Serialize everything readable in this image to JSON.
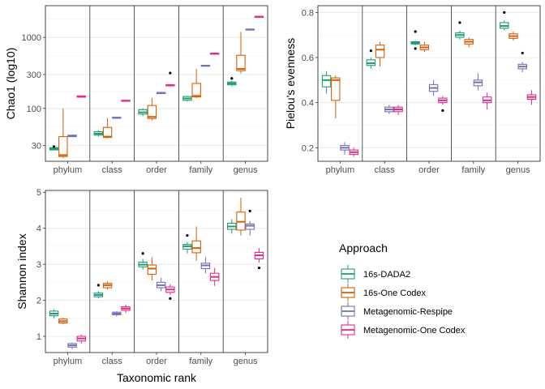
{
  "legend": {
    "title": "Approach",
    "items": [
      {
        "label": "16s-DADA2",
        "color": "#1b9e77"
      },
      {
        "label": "16s-One Codex",
        "color": "#d95f02"
      },
      {
        "label": "Metagenomic-Respipe",
        "color": "#7570b3"
      },
      {
        "label": "Metagenomic-One Codex",
        "color": "#e7298a"
      }
    ]
  },
  "chart_data": [
    {
      "type": "boxplot",
      "id": "chao1",
      "ylabel": "Chao1 (log10)",
      "xlabel": "",
      "yscale": "log10",
      "ylim": [
        18,
        2800
      ],
      "yticks": [
        {
          "v": 30,
          "label": "30"
        },
        {
          "v": 100,
          "label": "100"
        },
        {
          "v": 300,
          "label": "300"
        },
        {
          "v": 1000,
          "label": "1000"
        }
      ],
      "categories": [
        "phylum",
        "class",
        "order",
        "family",
        "genus"
      ],
      "grid": true,
      "series": [
        {
          "name": "16s-DADA2",
          "color": "#1b9e77",
          "boxes": [
            {
              "q1": 26,
              "med": 27,
              "q3": 28,
              "lo": 25.5,
              "hi": 28.5,
              "out": [
                29
              ]
            },
            {
              "q1": 42,
              "med": 44,
              "q3": 47,
              "lo": 40,
              "hi": 49,
              "out": []
            },
            {
              "q1": 83,
              "med": 88,
              "q3": 96,
              "lo": 78,
              "hi": 100,
              "out": []
            },
            {
              "q1": 130,
              "med": 138,
              "q3": 147,
              "lo": 125,
              "hi": 150,
              "out": []
            },
            {
              "q1": 215,
              "med": 225,
              "q3": 235,
              "lo": 205,
              "hi": 245,
              "out": [
                265
              ]
            }
          ]
        },
        {
          "name": "16s-One Codex",
          "color": "#d95f02",
          "boxes": [
            {
              "q1": 21,
              "med": 22,
              "q3": 40,
              "lo": 20,
              "hi": 100,
              "out": []
            },
            {
              "q1": 39,
              "med": 40,
              "q3": 54,
              "lo": 38,
              "hi": 73,
              "out": []
            },
            {
              "q1": 72,
              "med": 76,
              "q3": 110,
              "lo": 68,
              "hi": 140,
              "out": []
            },
            {
              "q1": 145,
              "med": 150,
              "q3": 225,
              "lo": 140,
              "hi": 360,
              "out": []
            },
            {
              "q1": 340,
              "med": 360,
              "q3": 560,
              "lo": 310,
              "hi": 1200,
              "out": []
            }
          ]
        },
        {
          "name": "Metagenomic-Respipe",
          "color": "#7570b3",
          "boxes": [
            {
              "q1": 40,
              "med": 41,
              "q3": 42,
              "lo": 39.5,
              "hi": 42.5,
              "out": []
            },
            {
              "q1": 73,
              "med": 74,
              "q3": 75,
              "lo": 72.5,
              "hi": 75.5,
              "out": []
            },
            {
              "q1": 162,
              "med": 165,
              "q3": 168,
              "lo": 160,
              "hi": 170,
              "out": []
            },
            {
              "q1": 395,
              "med": 400,
              "q3": 405,
              "lo": 390,
              "hi": 410,
              "out": []
            },
            {
              "q1": 1270,
              "med": 1290,
              "q3": 1310,
              "lo": 1250,
              "hi": 1330,
              "out": []
            }
          ]
        },
        {
          "name": "Metagenomic-One Codex",
          "color": "#e7298a",
          "boxes": [
            {
              "q1": 144,
              "med": 147,
              "q3": 150,
              "lo": 142,
              "hi": 152,
              "out": []
            },
            {
              "q1": 126,
              "med": 128,
              "q3": 130,
              "lo": 125,
              "hi": 131,
              "out": []
            },
            {
              "q1": 208,
              "med": 212,
              "q3": 216,
              "lo": 205,
              "hi": 220,
              "out": [
                315
              ]
            },
            {
              "q1": 580,
              "med": 590,
              "q3": 600,
              "lo": 570,
              "hi": 610,
              "out": []
            },
            {
              "q1": 1940,
              "med": 1960,
              "q3": 1980,
              "lo": 1920,
              "hi": 2000,
              "out": []
            }
          ]
        }
      ]
    },
    {
      "type": "boxplot",
      "id": "pielou",
      "ylabel": "Pielou's evenness",
      "xlabel": "",
      "yscale": "linear",
      "ylim": [
        0.14,
        0.83
      ],
      "yticks": [
        {
          "v": 0.2,
          "label": "0.2"
        },
        {
          "v": 0.4,
          "label": "0.4"
        },
        {
          "v": 0.6,
          "label": "0.6"
        },
        {
          "v": 0.8,
          "label": "0.8"
        }
      ],
      "categories": [
        "phylum",
        "class",
        "order",
        "family",
        "genus"
      ],
      "grid": true,
      "series": [
        {
          "name": "16s-DADA2",
          "color": "#1b9e77",
          "boxes": [
            {
              "q1": 0.47,
              "med": 0.5,
              "q3": 0.52,
              "lo": 0.44,
              "hi": 0.54,
              "out": []
            },
            {
              "q1": 0.565,
              "med": 0.575,
              "q3": 0.59,
              "lo": 0.55,
              "hi": 0.6,
              "out": [
                0.63
              ]
            },
            {
              "q1": 0.66,
              "med": 0.665,
              "q3": 0.67,
              "lo": 0.655,
              "hi": 0.675,
              "out": [
                0.715,
                0.64
              ]
            },
            {
              "q1": 0.69,
              "med": 0.7,
              "q3": 0.71,
              "lo": 0.68,
              "hi": 0.72,
              "out": [
                0.755
              ]
            },
            {
              "q1": 0.73,
              "med": 0.74,
              "q3": 0.755,
              "lo": 0.72,
              "hi": 0.765,
              "out": [
                0.8
              ]
            }
          ]
        },
        {
          "name": "16s-One Codex",
          "color": "#d95f02",
          "boxes": [
            {
              "q1": 0.41,
              "med": 0.5,
              "q3": 0.51,
              "lo": 0.33,
              "hi": 0.52,
              "out": []
            },
            {
              "q1": 0.6,
              "med": 0.635,
              "q3": 0.655,
              "lo": 0.56,
              "hi": 0.67,
              "out": []
            },
            {
              "q1": 0.635,
              "med": 0.645,
              "q3": 0.655,
              "lo": 0.625,
              "hi": 0.67,
              "out": []
            },
            {
              "q1": 0.66,
              "med": 0.67,
              "q3": 0.68,
              "lo": 0.645,
              "hi": 0.69,
              "out": []
            },
            {
              "q1": 0.685,
              "med": 0.695,
              "q3": 0.705,
              "lo": 0.675,
              "hi": 0.715,
              "out": []
            }
          ]
        },
        {
          "name": "Metagenomic-Respipe",
          "color": "#7570b3",
          "boxes": [
            {
              "q1": 0.19,
              "med": 0.2,
              "q3": 0.21,
              "lo": 0.17,
              "hi": 0.225,
              "out": []
            },
            {
              "q1": 0.36,
              "med": 0.37,
              "q3": 0.38,
              "lo": 0.35,
              "hi": 0.39,
              "out": []
            },
            {
              "q1": 0.45,
              "med": 0.465,
              "q3": 0.48,
              "lo": 0.43,
              "hi": 0.5,
              "out": []
            },
            {
              "q1": 0.475,
              "med": 0.49,
              "q3": 0.5,
              "lo": 0.455,
              "hi": 0.53,
              "out": []
            },
            {
              "q1": 0.55,
              "med": 0.56,
              "q3": 0.57,
              "lo": 0.535,
              "hi": 0.58,
              "out": [
                0.62
              ]
            }
          ]
        },
        {
          "name": "Metagenomic-One Codex",
          "color": "#e7298a",
          "boxes": [
            {
              "q1": 0.17,
              "med": 0.18,
              "q3": 0.19,
              "lo": 0.16,
              "hi": 0.2,
              "out": []
            },
            {
              "q1": 0.36,
              "med": 0.37,
              "q3": 0.38,
              "lo": 0.345,
              "hi": 0.39,
              "out": []
            },
            {
              "q1": 0.4,
              "med": 0.41,
              "q3": 0.42,
              "lo": 0.39,
              "hi": 0.43,
              "out": [
                0.365
              ]
            },
            {
              "q1": 0.4,
              "med": 0.41,
              "q3": 0.425,
              "lo": 0.37,
              "hi": 0.445,
              "out": []
            },
            {
              "q1": 0.415,
              "med": 0.425,
              "q3": 0.435,
              "lo": 0.39,
              "hi": 0.455,
              "out": []
            }
          ]
        }
      ]
    },
    {
      "type": "boxplot",
      "id": "shannon",
      "ylabel": "Shannon index",
      "xlabel": "Taxonomic rank",
      "yscale": "linear",
      "ylim": [
        0.55,
        5.05
      ],
      "yticks": [
        {
          "v": 1,
          "label": "1"
        },
        {
          "v": 2,
          "label": "2"
        },
        {
          "v": 3,
          "label": "3"
        },
        {
          "v": 4,
          "label": "4"
        },
        {
          "v": 5,
          "label": "5"
        }
      ],
      "categories": [
        "phylum",
        "class",
        "order",
        "family",
        "genus"
      ],
      "grid": true,
      "series": [
        {
          "name": "16s-DADA2",
          "color": "#1b9e77",
          "boxes": [
            {
              "q1": 1.57,
              "med": 1.63,
              "q3": 1.7,
              "lo": 1.5,
              "hi": 1.75,
              "out": []
            },
            {
              "q1": 2.1,
              "med": 2.15,
              "q3": 2.2,
              "lo": 2.05,
              "hi": 2.25,
              "out": [
                2.42
              ]
            },
            {
              "q1": 2.93,
              "med": 2.99,
              "q3": 3.06,
              "lo": 2.85,
              "hi": 3.15,
              "out": [
                3.3
              ]
            },
            {
              "q1": 3.42,
              "med": 3.5,
              "q3": 3.55,
              "lo": 3.3,
              "hi": 3.62,
              "out": [
                3.8
              ]
            },
            {
              "q1": 3.97,
              "med": 4.05,
              "q3": 4.14,
              "lo": 3.85,
              "hi": 4.25,
              "out": []
            }
          ]
        },
        {
          "name": "16s-One Codex",
          "color": "#d95f02",
          "boxes": [
            {
              "q1": 1.37,
              "med": 1.42,
              "q3": 1.48,
              "lo": 1.33,
              "hi": 1.52,
              "out": []
            },
            {
              "q1": 2.35,
              "med": 2.42,
              "q3": 2.47,
              "lo": 2.3,
              "hi": 2.52,
              "out": []
            },
            {
              "q1": 2.72,
              "med": 2.88,
              "q3": 2.98,
              "lo": 2.55,
              "hi": 3.2,
              "out": []
            },
            {
              "q1": 3.32,
              "med": 3.45,
              "q3": 3.65,
              "lo": 3.1,
              "hi": 4.05,
              "out": []
            },
            {
              "q1": 3.95,
              "med": 4.18,
              "q3": 4.45,
              "lo": 3.8,
              "hi": 4.85,
              "out": []
            }
          ]
        },
        {
          "name": "Metagenomic-Respipe",
          "color": "#7570b3",
          "boxes": [
            {
              "q1": 0.7,
              "med": 0.75,
              "q3": 0.8,
              "lo": 0.65,
              "hi": 0.83,
              "out": []
            },
            {
              "q1": 1.6,
              "med": 1.63,
              "q3": 1.67,
              "lo": 1.55,
              "hi": 1.7,
              "out": []
            },
            {
              "q1": 2.35,
              "med": 2.42,
              "q3": 2.5,
              "lo": 2.25,
              "hi": 2.62,
              "out": []
            },
            {
              "q1": 2.88,
              "med": 2.97,
              "q3": 3.03,
              "lo": 2.75,
              "hi": 3.2,
              "out": []
            },
            {
              "q1": 3.97,
              "med": 4.07,
              "q3": 4.12,
              "lo": 3.8,
              "hi": 4.2,
              "out": [
                4.48
              ]
            }
          ]
        },
        {
          "name": "Metagenomic-One Codex",
          "color": "#e7298a",
          "boxes": [
            {
              "q1": 0.87,
              "med": 0.94,
              "q3": 1.0,
              "lo": 0.8,
              "hi": 1.05,
              "out": []
            },
            {
              "q1": 1.72,
              "med": 1.77,
              "q3": 1.82,
              "lo": 1.65,
              "hi": 1.88,
              "out": []
            },
            {
              "q1": 2.22,
              "med": 2.3,
              "q3": 2.37,
              "lo": 2.15,
              "hi": 2.45,
              "out": [
                2.05
              ]
            },
            {
              "q1": 2.55,
              "med": 2.65,
              "q3": 2.75,
              "lo": 2.4,
              "hi": 2.9,
              "out": []
            },
            {
              "q1": 3.15,
              "med": 3.25,
              "q3": 3.33,
              "lo": 3.05,
              "hi": 3.45,
              "out": [
                2.9
              ]
            }
          ]
        }
      ]
    }
  ]
}
